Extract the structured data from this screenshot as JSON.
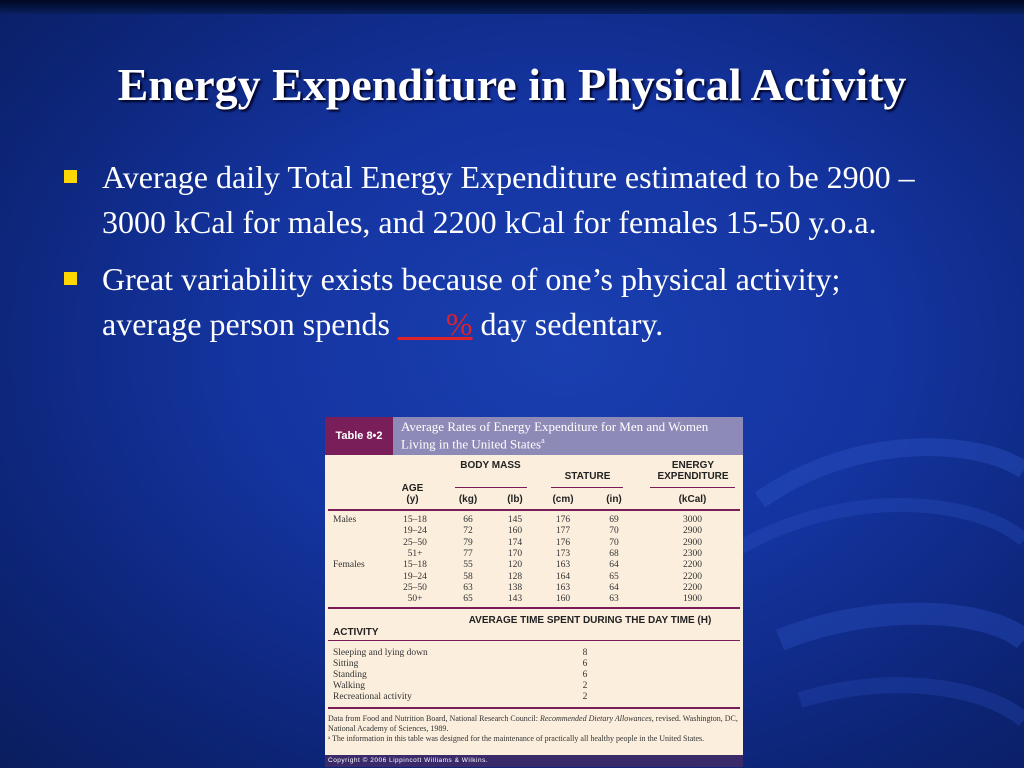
{
  "slide": {
    "title": "Energy Expenditure in Physical Activity",
    "bullet1": "Average daily Total Energy Expenditure estimated to be 2900 – 3000 kCal for males, and 2200 kCal for females 15-50 y.o.a.",
    "bullet2_prefix": "Great variability exists because of one’s physical activity; average person spends ",
    "bullet2_blank": "___%",
    "bullet2_suffix": " day sedentary."
  },
  "colors": {
    "background": "#1434a0",
    "bullet": "#ffd700",
    "blank": "#e0202a",
    "table_header": "#8e8ab8",
    "table_label_bg": "#7a1e5a"
  },
  "table": {
    "label": "Table 8•2",
    "title": "Average Rates of Energy Expenditure for Men and Women Living in the United States",
    "title_sup": "a",
    "headers": {
      "age": "AGE",
      "age_unit": "(y)",
      "body_mass": "BODY MASS",
      "kg": "(kg)",
      "lb": "(lb)",
      "stature": "STATURE",
      "cm": "(cm)",
      "in": "(in)",
      "energy": "ENERGY EXPENDITURE",
      "kcal": "(kCal)"
    },
    "rows": [
      {
        "group": "Males",
        "age": "15–18",
        "kg": "66",
        "lb": "145",
        "cm": "176",
        "in": "69",
        "kcal": "3000"
      },
      {
        "group": "",
        "age": "19–24",
        "kg": "72",
        "lb": "160",
        "cm": "177",
        "in": "70",
        "kcal": "2900"
      },
      {
        "group": "",
        "age": "25–50",
        "kg": "79",
        "lb": "174",
        "cm": "176",
        "in": "70",
        "kcal": "2900"
      },
      {
        "group": "",
        "age": "51+",
        "kg": "77",
        "lb": "170",
        "cm": "173",
        "in": "68",
        "kcal": "2300"
      },
      {
        "group": "Females",
        "age": "15–18",
        "kg": "55",
        "lb": "120",
        "cm": "163",
        "in": "64",
        "kcal": "2200"
      },
      {
        "group": "",
        "age": "19–24",
        "kg": "58",
        "lb": "128",
        "cm": "164",
        "in": "65",
        "kcal": "2200"
      },
      {
        "group": "",
        "age": "25–50",
        "kg": "63",
        "lb": "138",
        "cm": "163",
        "in": "64",
        "kcal": "2200"
      },
      {
        "group": "",
        "age": "50+",
        "kg": "65",
        "lb": "143",
        "cm": "160",
        "in": "63",
        "kcal": "1900"
      }
    ],
    "activity_header": "ACTIVITY",
    "time_header": "AVERAGE TIME SPENT DURING THE DAY TIME (H)",
    "activities": [
      {
        "name": "Sleeping and lying down",
        "hours": "8"
      },
      {
        "name": "Sitting",
        "hours": "6"
      },
      {
        "name": "Standing",
        "hours": "6"
      },
      {
        "name": "Walking",
        "hours": "2"
      },
      {
        "name": "Recreational activity",
        "hours": "2"
      }
    ],
    "footnote_pre": "Data from Food and Nutrition Board, National Research Council: ",
    "footnote_italic": "Recommended Dietary Allowances",
    "footnote_post": ", revised. Washington, DC, National Academy of Sciences, 1989.",
    "footnote_a": "ᵃ The information in this table was designed for the maintenance of practically all healthy people in the United States.",
    "copyright": "Copyright © 2006 Lippincott Williams & Wilkins."
  }
}
